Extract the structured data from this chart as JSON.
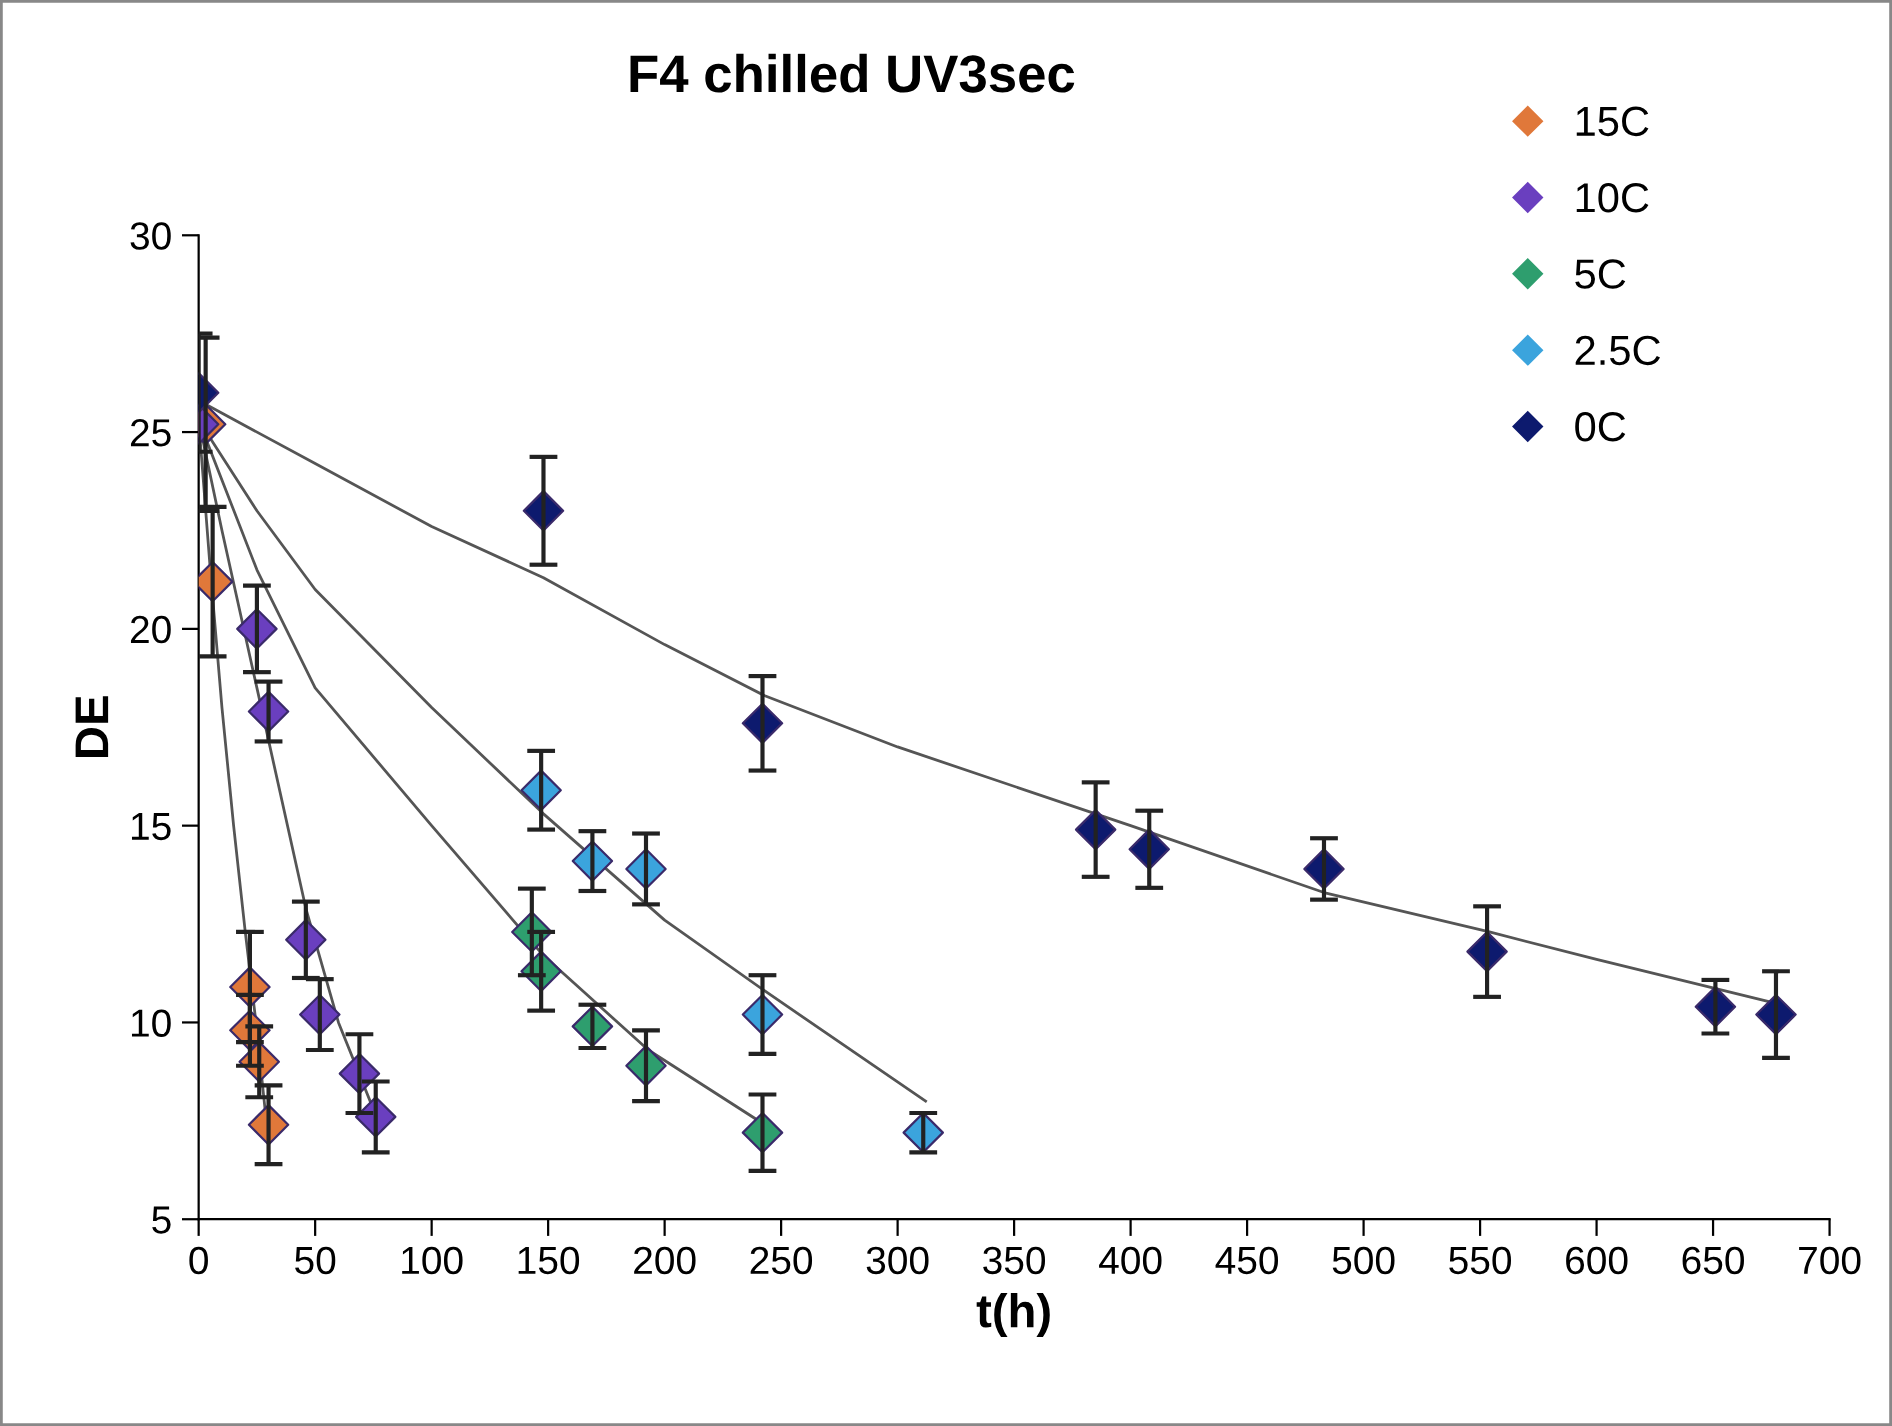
{
  "chart_data": {
    "type": "scatter",
    "title": "F4 chilled UV3sec",
    "xlabel": "t(h)",
    "ylabel": "DE",
    "xlim": [
      0,
      700
    ],
    "ylim": [
      5,
      30
    ],
    "xticks": [
      0,
      50,
      100,
      150,
      200,
      250,
      300,
      350,
      400,
      450,
      500,
      550,
      600,
      650,
      700
    ],
    "yticks": [
      5,
      10,
      15,
      20,
      25,
      30
    ],
    "grid": false,
    "legend": "top right",
    "marker": "diamond",
    "series": [
      {
        "name": "15C",
        "color": "#e0783a",
        "x": [
          3,
          6,
          22,
          22,
          26,
          30
        ],
        "values": [
          25.2,
          21.2,
          10.9,
          9.8,
          9.0,
          7.4
        ],
        "errors": [
          2.2,
          1.9,
          1.4,
          0.9,
          0.9,
          1.0
        ]
      },
      {
        "name": "10C",
        "color": "#6a3fbf",
        "x": [
          0,
          25,
          30,
          46,
          52,
          69,
          76
        ],
        "values": [
          25.2,
          20.0,
          17.9,
          12.1,
          10.2,
          8.7,
          7.6
        ],
        "errors": [
          null,
          1.1,
          0.76,
          0.97,
          0.9,
          1.0,
          0.9
        ]
      },
      {
        "name": "5C",
        "color": "#2e9e6e",
        "x": [
          143,
          147,
          169,
          192,
          242
        ],
        "values": [
          12.3,
          11.3,
          9.9,
          8.9,
          7.2
        ],
        "errors": [
          1.1,
          1.0,
          0.55,
          0.9,
          0.97
        ]
      },
      {
        "name": "2.5C",
        "color": "#3ba4dd",
        "x": [
          147,
          169,
          192,
          242,
          311
        ],
        "values": [
          15.9,
          14.1,
          13.9,
          10.2,
          7.2
        ],
        "errors": [
          1.0,
          0.76,
          0.9,
          1.0,
          0.5
        ]
      },
      {
        "name": "0C",
        "color": "#0d1a6e",
        "x": [
          0,
          148,
          242,
          385,
          408,
          483,
          553,
          651,
          677
        ],
        "values": [
          26.0,
          23.0,
          17.6,
          14.9,
          14.4,
          13.9,
          11.8,
          10.4,
          10.2
        ],
        "errors": [
          1.5,
          1.37,
          1.2,
          1.2,
          0.98,
          0.78,
          1.15,
          0.68,
          1.1
        ]
      },
      {
        "type": "line",
        "marker": "none",
        "color": "#555555",
        "line_style": "solid",
        "x": [
          0,
          5,
          10,
          15,
          20,
          25,
          29
        ],
        "values": [
          25.3,
          21.5,
          18.0,
          15.0,
          12.3,
          9.8,
          7.5
        ]
      },
      {
        "type": "line",
        "marker": "none",
        "color": "#555555",
        "line_style": "solid",
        "x": [
          0,
          10,
          25,
          46,
          60,
          77
        ],
        "values": [
          25.3,
          22.5,
          18.5,
          12.9,
          10.0,
          7.5
        ]
      },
      {
        "type": "line",
        "marker": "none",
        "color": "#555555",
        "line_style": "solid",
        "x": [
          0,
          25,
          50,
          100,
          148,
          193,
          243
        ],
        "values": [
          25.3,
          21.5,
          18.5,
          15.0,
          11.7,
          9.3,
          7.4
        ]
      },
      {
        "type": "line",
        "marker": "none",
        "color": "#555555",
        "line_style": "solid",
        "x": [
          0,
          25,
          50,
          100,
          148,
          200,
          243,
          312
        ],
        "values": [
          25.3,
          23.0,
          21.0,
          18.0,
          15.3,
          12.6,
          10.8,
          8.0
        ]
      },
      {
        "type": "line",
        "marker": "none",
        "color": "#555555",
        "line_style": "solid",
        "x": [
          0,
          50,
          100,
          148,
          200,
          243,
          300,
          385,
          400,
          483,
          554,
          600,
          676
        ],
        "values": [
          25.8,
          24.2,
          22.6,
          21.3,
          19.6,
          18.3,
          17.0,
          15.3,
          15.0,
          13.3,
          12.3,
          11.6,
          10.5
        ]
      }
    ]
  }
}
